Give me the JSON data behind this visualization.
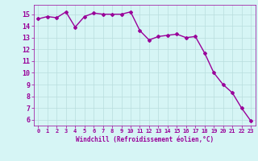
{
  "x": [
    0,
    1,
    2,
    3,
    4,
    5,
    6,
    7,
    8,
    9,
    10,
    11,
    12,
    13,
    14,
    15,
    16,
    17,
    18,
    19,
    20,
    21,
    22,
    23
  ],
  "y": [
    14.6,
    14.8,
    14.7,
    15.2,
    13.9,
    14.8,
    15.1,
    15.0,
    15.0,
    15.0,
    15.2,
    13.6,
    12.8,
    13.1,
    13.2,
    13.3,
    13.0,
    13.1,
    11.7,
    10.0,
    9.0,
    8.3,
    7.0,
    5.9
  ],
  "line_color": "#990099",
  "marker": "D",
  "marker_size": 2.0,
  "bg_color": "#d6f5f5",
  "grid_color": "#b8dede",
  "xlabel": "Windchill (Refroidissement éolien,°C)",
  "xlabel_color": "#990099",
  "tick_color": "#990099",
  "xlim": [
    -0.5,
    23.5
  ],
  "ylim": [
    5.5,
    15.8
  ],
  "yticks": [
    6,
    7,
    8,
    9,
    10,
    11,
    12,
    13,
    14,
    15
  ],
  "xticks": [
    0,
    1,
    2,
    3,
    4,
    5,
    6,
    7,
    8,
    9,
    10,
    11,
    12,
    13,
    14,
    15,
    16,
    17,
    18,
    19,
    20,
    21,
    22,
    23
  ],
  "line_width": 1.0
}
